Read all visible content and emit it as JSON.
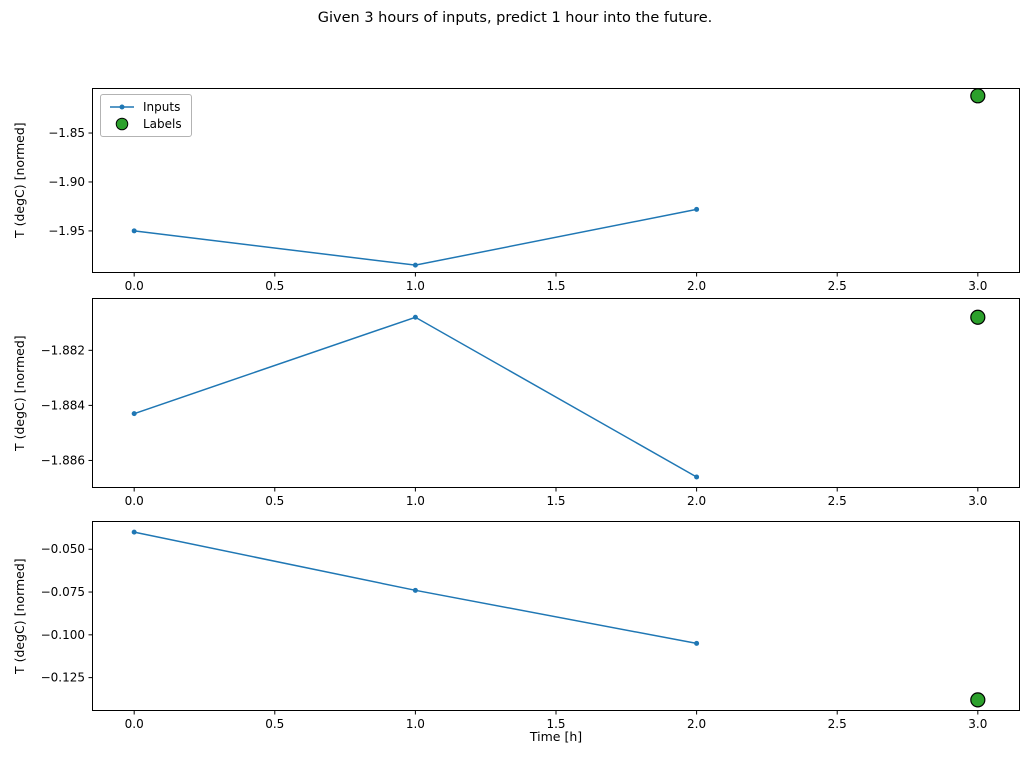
{
  "chart_data": {
    "type": "line",
    "title": "Given 3 hours of inputs, predict 1 hour into the future.",
    "xlabel": "Time [h]",
    "ylabel": "T (degC) [normed]",
    "legend": {
      "entries": [
        "Inputs",
        "Labels"
      ],
      "position": "upper left of first subplot"
    },
    "colors": {
      "inputs": "#1f77b4",
      "labels": "#2ca02c",
      "labels_edge": "#000000",
      "axis": "#000000"
    },
    "x_inputs": [
      0,
      1,
      2
    ],
    "x_label_point": 3,
    "xlim": [
      -0.15,
      3.15
    ],
    "x_ticks": [
      0.0,
      0.5,
      1.0,
      1.5,
      2.0,
      2.5,
      3.0
    ],
    "x_tick_labels": [
      "0.0",
      "0.5",
      "1.0",
      "1.5",
      "2.0",
      "2.5",
      "3.0"
    ],
    "grid": false,
    "subplots": [
      {
        "inputs_y": [
          -1.95,
          -1.985,
          -1.928
        ],
        "label_y": -1.812,
        "y_ticks": [
          -1.85,
          -1.9,
          -1.95
        ],
        "y_tick_labels": [
          "−1.85",
          "−1.90",
          "−1.95"
        ],
        "ylim": [
          -1.993,
          -1.804
        ]
      },
      {
        "inputs_y": [
          -1.8843,
          -1.8808,
          -1.8866
        ],
        "label_y": -1.8808,
        "y_ticks": [
          -1.882,
          -1.884,
          -1.886
        ],
        "y_tick_labels": [
          "−1.882",
          "−1.884",
          "−1.886"
        ],
        "ylim": [
          -1.887,
          -1.8801
        ]
      },
      {
        "inputs_y": [
          -0.04,
          -0.074,
          -0.105
        ],
        "label_y": -0.138,
        "y_ticks": [
          -0.05,
          -0.075,
          -0.1,
          -0.125
        ],
        "y_tick_labels": [
          "−0.050",
          "−0.075",
          "−0.100",
          "−0.125"
        ],
        "ylim": [
          -0.1445,
          -0.0335
        ]
      }
    ]
  }
}
